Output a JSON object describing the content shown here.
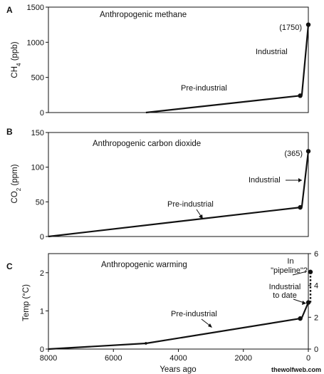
{
  "watermark": "thewolfweb.com",
  "chart_data": [
    {
      "type": "line",
      "panel": "A",
      "title": "Anthropogenic methane",
      "ylabel": "CH4 (ppb)",
      "ylabel_main": "CH",
      "ylabel_sub": "4",
      "ylabel_rest": " (ppb)",
      "xlabel": "",
      "xlim": [
        8000,
        0
      ],
      "ylim": [
        0,
        1500
      ],
      "yticks": [
        0,
        500,
        1000,
        1500
      ],
      "ytick_labels": [
        "0",
        "500",
        "1000",
        "1500"
      ],
      "grid": false,
      "series": [
        {
          "x": [
            5000,
            250,
            200,
            0
          ],
          "y": [
            0,
            240,
            250,
            1250
          ]
        }
      ],
      "markers": [
        {
          "x": 250,
          "y": 240
        },
        {
          "x": 0,
          "y": 1250
        }
      ],
      "annotations": [
        {
          "text": "(1750)",
          "x": 0,
          "y": 1250
        },
        {
          "text": "Industrial",
          "x": 0,
          "y": 1000
        },
        {
          "text": "Pre-industrial",
          "x": 2500,
          "y": 150
        }
      ]
    },
    {
      "type": "line",
      "panel": "B",
      "title": "Anthropogenic carbon dioxide",
      "ylabel": "CO2 (ppm)",
      "ylabel_main": "CO",
      "ylabel_sub": "2",
      "ylabel_rest": " (ppm)",
      "xlabel": "",
      "xlim": [
        8000,
        0
      ],
      "ylim": [
        0,
        150
      ],
      "yticks": [
        0,
        50,
        100,
        150
      ],
      "ytick_labels": [
        "0",
        "50",
        "100",
        "150"
      ],
      "grid": false,
      "series": [
        {
          "x": [
            8000,
            250,
            200,
            0
          ],
          "y": [
            0,
            42,
            43,
            123
          ]
        }
      ],
      "markers": [
        {
          "x": 250,
          "y": 42
        },
        {
          "x": 0,
          "y": 123
        }
      ],
      "annotations": [
        {
          "text": "(365)",
          "x": 0,
          "y": 123
        },
        {
          "text": "Industrial",
          "x": 0,
          "y": 80
        },
        {
          "text": "Pre-industrial",
          "x": 2500,
          "y": 28
        }
      ]
    },
    {
      "type": "line",
      "panel": "C",
      "title": "Anthropogenic warming",
      "ylabel": "Temp (°C)",
      "xlabel": "Years ago",
      "xlim": [
        8000,
        0
      ],
      "ylim": [
        0,
        2.5
      ],
      "yticks": [
        0,
        1,
        2
      ],
      "ytick_labels": [
        "0",
        "1",
        "2"
      ],
      "y2lim": [
        0,
        6
      ],
      "y2ticks": [
        0,
        2,
        4,
        6
      ],
      "y2tick_labels": [
        "0",
        "2",
        "4",
        "6"
      ],
      "xticks": [
        8000,
        6000,
        4000,
        2000,
        0
      ],
      "xtick_labels": [
        "8000",
        "6000",
        "4000",
        "2000",
        "0"
      ],
      "grid": false,
      "series": [
        {
          "x": [
            8000,
            5000,
            250,
            200,
            0
          ],
          "y": [
            0,
            0.15,
            0.8,
            0.82,
            1.22
          ]
        }
      ],
      "projection": {
        "x": [
          0,
          0
        ],
        "y": [
          1.22,
          2.02
        ]
      },
      "markers": [
        {
          "x": 5000,
          "y": 0.15
        },
        {
          "x": 250,
          "y": 0.8
        },
        {
          "x": 0,
          "y": 1.22
        },
        {
          "x": 0,
          "y": 2.02
        }
      ],
      "annotations": [
        {
          "text": "In",
          "x": 0,
          "y": 2.3
        },
        {
          "text": "\"pipeline\"?",
          "x": 0,
          "y": 2.1
        },
        {
          "text": "Industrial",
          "x": 0,
          "y": 1.6
        },
        {
          "text": "to date",
          "x": 0,
          "y": 1.4
        },
        {
          "text": "Pre-industrial",
          "x": 2500,
          "y": 0.9
        }
      ]
    }
  ]
}
